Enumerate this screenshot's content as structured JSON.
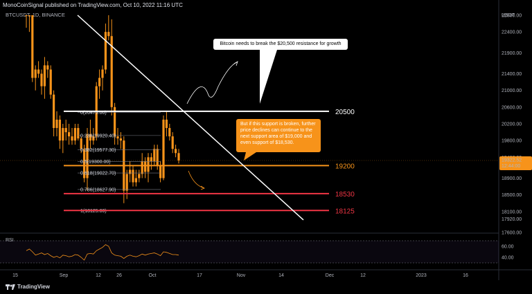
{
  "header": {
    "published": "MonoCoinSignal published on TradingView.com, Oct 10, 2022 11:16 UTC",
    "symbol": "BTCUSDT, 1D, BINANCE"
  },
  "footer": {
    "brand": "TradingView"
  },
  "colors": {
    "candle": "#f7931a",
    "resistance": "#ffffff",
    "support": "#f7931a",
    "lower_support": "#f23645",
    "rsi": "#f7931a",
    "background": "#000000"
  },
  "annotations": {
    "callout_top": "Bitcoin needs to break the $20,500 resistance for growth",
    "callout_orange": "But if this support is broken, further price declines can continue to the next support area of $19,000 and even support of $18,530."
  },
  "price_badge": {
    "value": "19322.52",
    "countdown": "12:44:00"
  },
  "chart_data": {
    "type": "candlestick",
    "title": "BTCUSDT, 1D, BINANCE",
    "y_axis_label": "USDT",
    "ylim": [
      17600,
      22800
    ],
    "y_ticks": [
      22800,
      22400,
      21900,
      21400,
      21000,
      20600,
      20200,
      19800,
      19400,
      18900,
      18500,
      18100,
      17920,
      17600
    ],
    "y_tick_labels": [
      "22800.00",
      "22400.00",
      "21900.00",
      "21400.00",
      "21000.00",
      "20600.00",
      "20200.00",
      "19800.00",
      "19400.00",
      "18900.00",
      "18500.00",
      "18100.00",
      "17920.00",
      "17600.00"
    ],
    "x_tick_labels": [
      "15",
      "Sep",
      "12",
      "26",
      "Oct",
      "17",
      "Nov",
      "14",
      "Dec",
      "12",
      "2023",
      "16"
    ],
    "candles": [
      {
        "o": 22800,
        "h": 24000,
        "l": 22500,
        "c": 23500
      },
      {
        "o": 23500,
        "h": 23800,
        "l": 22400,
        "c": 22800
      },
      {
        "o": 22800,
        "h": 23200,
        "l": 21200,
        "c": 21300
      },
      {
        "o": 21300,
        "h": 21600,
        "l": 21000,
        "c": 21500
      },
      {
        "o": 21500,
        "h": 21700,
        "l": 21300,
        "c": 21400
      },
      {
        "o": 21400,
        "h": 21500,
        "l": 20900,
        "c": 21100
      },
      {
        "o": 21100,
        "h": 21800,
        "l": 20800,
        "c": 21600
      },
      {
        "o": 21600,
        "h": 21700,
        "l": 21300,
        "c": 21500
      },
      {
        "o": 21500,
        "h": 21600,
        "l": 20800,
        "c": 20900
      },
      {
        "o": 20900,
        "h": 21000,
        "l": 19900,
        "c": 20100
      },
      {
        "o": 20100,
        "h": 20500,
        "l": 19900,
        "c": 20300
      },
      {
        "o": 20300,
        "h": 20400,
        "l": 19600,
        "c": 19800
      },
      {
        "o": 19800,
        "h": 20200,
        "l": 19500,
        "c": 20100
      },
      {
        "o": 20100,
        "h": 20300,
        "l": 19800,
        "c": 20000
      },
      {
        "o": 20000,
        "h": 20200,
        "l": 19700,
        "c": 19900
      },
      {
        "o": 19900,
        "h": 20100,
        "l": 19700,
        "c": 19800
      },
      {
        "o": 19800,
        "h": 20200,
        "l": 19700,
        "c": 20100
      },
      {
        "o": 20100,
        "h": 20200,
        "l": 19800,
        "c": 19850
      },
      {
        "o": 19850,
        "h": 19900,
        "l": 19500,
        "c": 19600
      },
      {
        "o": 19600,
        "h": 19700,
        "l": 18800,
        "c": 18900
      },
      {
        "o": 18900,
        "h": 20100,
        "l": 18600,
        "c": 19950
      },
      {
        "o": 19950,
        "h": 20300,
        "l": 19600,
        "c": 19800
      },
      {
        "o": 19800,
        "h": 20100,
        "l": 19700,
        "c": 19900
      },
      {
        "o": 19900,
        "h": 21200,
        "l": 19800,
        "c": 21100
      },
      {
        "o": 21100,
        "h": 21500,
        "l": 20800,
        "c": 21300
      },
      {
        "o": 21300,
        "h": 21600,
        "l": 21000,
        "c": 21500
      },
      {
        "o": 21500,
        "h": 22600,
        "l": 21400,
        "c": 22400
      },
      {
        "o": 22400,
        "h": 22800,
        "l": 22200,
        "c": 22300
      },
      {
        "o": 22300,
        "h": 22700,
        "l": 20400,
        "c": 20600
      },
      {
        "o": 20600,
        "h": 20700,
        "l": 19700,
        "c": 19900
      },
      {
        "o": 19900,
        "h": 20100,
        "l": 19700,
        "c": 19850
      },
      {
        "o": 19850,
        "h": 20000,
        "l": 19600,
        "c": 19800
      },
      {
        "o": 19800,
        "h": 19900,
        "l": 18300,
        "c": 18600
      },
      {
        "o": 18600,
        "h": 19100,
        "l": 18400,
        "c": 19000
      },
      {
        "o": 19000,
        "h": 19300,
        "l": 18800,
        "c": 19100
      },
      {
        "o": 19100,
        "h": 19200,
        "l": 18700,
        "c": 18800
      },
      {
        "o": 18800,
        "h": 19100,
        "l": 18700,
        "c": 18900
      },
      {
        "o": 18900,
        "h": 19100,
        "l": 18800,
        "c": 19000
      },
      {
        "o": 19000,
        "h": 19500,
        "l": 18900,
        "c": 19300
      },
      {
        "o": 19300,
        "h": 19400,
        "l": 18900,
        "c": 19050
      },
      {
        "o": 19050,
        "h": 19500,
        "l": 18800,
        "c": 19400
      },
      {
        "o": 19400,
        "h": 19500,
        "l": 19100,
        "c": 19300
      },
      {
        "o": 19300,
        "h": 19700,
        "l": 19200,
        "c": 19600
      },
      {
        "o": 19600,
        "h": 19700,
        "l": 19100,
        "c": 19200
      },
      {
        "o": 19200,
        "h": 19300,
        "l": 18800,
        "c": 18900
      },
      {
        "o": 18900,
        "h": 20400,
        "l": 18850,
        "c": 20300
      },
      {
        "o": 20300,
        "h": 20500,
        "l": 19900,
        "c": 20100
      },
      {
        "o": 20100,
        "h": 20200,
        "l": 19800,
        "c": 19900
      },
      {
        "o": 19900,
        "h": 20000,
        "l": 19500,
        "c": 19600
      },
      {
        "o": 19600,
        "h": 19700,
        "l": 19400,
        "c": 19500
      },
      {
        "o": 19500,
        "h": 19600,
        "l": 19250,
        "c": 19322.52
      }
    ],
    "levels": [
      {
        "value": 20500,
        "label": "20500",
        "color": "#ffffff"
      },
      {
        "value": 19200,
        "label": "19200",
        "color": "#f7931a"
      },
      {
        "value": 18530,
        "label": "18530",
        "color": "#f23645"
      },
      {
        "value": 18125,
        "label": "18125",
        "color": "#f23645"
      }
    ],
    "fib_levels": [
      {
        "label": "0.236(19920.40)",
        "value": 19920.4
      },
      {
        "label": "0.382(19577.30)",
        "value": 19577.3
      },
      {
        "label": "0.5(19300.00)",
        "value": 19300.0
      },
      {
        "label": "0.618(19022.70)",
        "value": 19022.7
      },
      {
        "label": "0.786(18627.90)",
        "value": 18627.9
      },
      {
        "label": "1(18125.00)",
        "value": 18125.0
      },
      {
        "label": "0(20475.00)",
        "value": 20475.0
      }
    ],
    "rsi": {
      "label": "RSI",
      "ylim": [
        20,
        80
      ],
      "ticks": [
        60,
        40
      ],
      "tick_labels": [
        "60.00",
        "40.00"
      ],
      "values": [
        52,
        55,
        50,
        44,
        46,
        48,
        45,
        47,
        43,
        40,
        42,
        39,
        44,
        43,
        41,
        42,
        45,
        44,
        40,
        35,
        46,
        47,
        46,
        52,
        55,
        58,
        63,
        60,
        48,
        44,
        43,
        42,
        38,
        42,
        44,
        42,
        41,
        43,
        46,
        44,
        46,
        47,
        48,
        46,
        43,
        50,
        49,
        47,
        45,
        45,
        44
      ]
    }
  }
}
